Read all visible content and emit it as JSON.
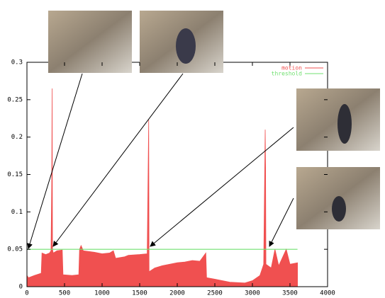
{
  "chart_data": {
    "type": "area",
    "series": [
      {
        "name": "motion",
        "color": "#f05050",
        "x": [
          0,
          20,
          100,
          190,
          200,
          250,
          300,
          320,
          330,
          335,
          340,
          350,
          400,
          470,
          480,
          600,
          690,
          700,
          720,
          750,
          900,
          1000,
          1100,
          1150,
          1180,
          1300,
          1350,
          1500,
          1600,
          1620,
          1625,
          1700,
          1800,
          1900,
          2000,
          2100,
          2200,
          2300,
          2380,
          2390,
          2500,
          2700,
          2900,
          3000,
          3100,
          3150,
          3170,
          3175,
          3180,
          3250,
          3300,
          3350,
          3450,
          3500,
          3600
        ],
        "values": [
          0.015,
          0.012,
          0.015,
          0.018,
          0.045,
          0.043,
          0.045,
          0.048,
          0.14,
          0.265,
          0.05,
          0.045,
          0.048,
          0.049,
          0.016,
          0.015,
          0.016,
          0.05,
          0.055,
          0.048,
          0.046,
          0.044,
          0.045,
          0.048,
          0.038,
          0.04,
          0.042,
          0.043,
          0.044,
          0.223,
          0.02,
          0.025,
          0.028,
          0.03,
          0.032,
          0.033,
          0.035,
          0.034,
          0.045,
          0.012,
          0.01,
          0.006,
          0.005,
          0.008,
          0.015,
          0.03,
          0.21,
          0.16,
          0.03,
          0.025,
          0.05,
          0.028,
          0.05,
          0.03,
          0.032
        ]
      },
      {
        "name": "threshold",
        "color": "#70e070",
        "x": [
          0,
          3600
        ],
        "values": [
          0.05,
          0.05
        ]
      }
    ],
    "xlim": [
      0,
      4000
    ],
    "xticks": [
      0,
      500,
      1000,
      1500,
      2000,
      2500,
      3000,
      3500,
      4000
    ],
    "ylim": [
      0,
      0.3
    ],
    "yticks": [
      0,
      0.05,
      0.1,
      0.15,
      0.2,
      0.25,
      0.3
    ],
    "legend": "upper right"
  }
}
